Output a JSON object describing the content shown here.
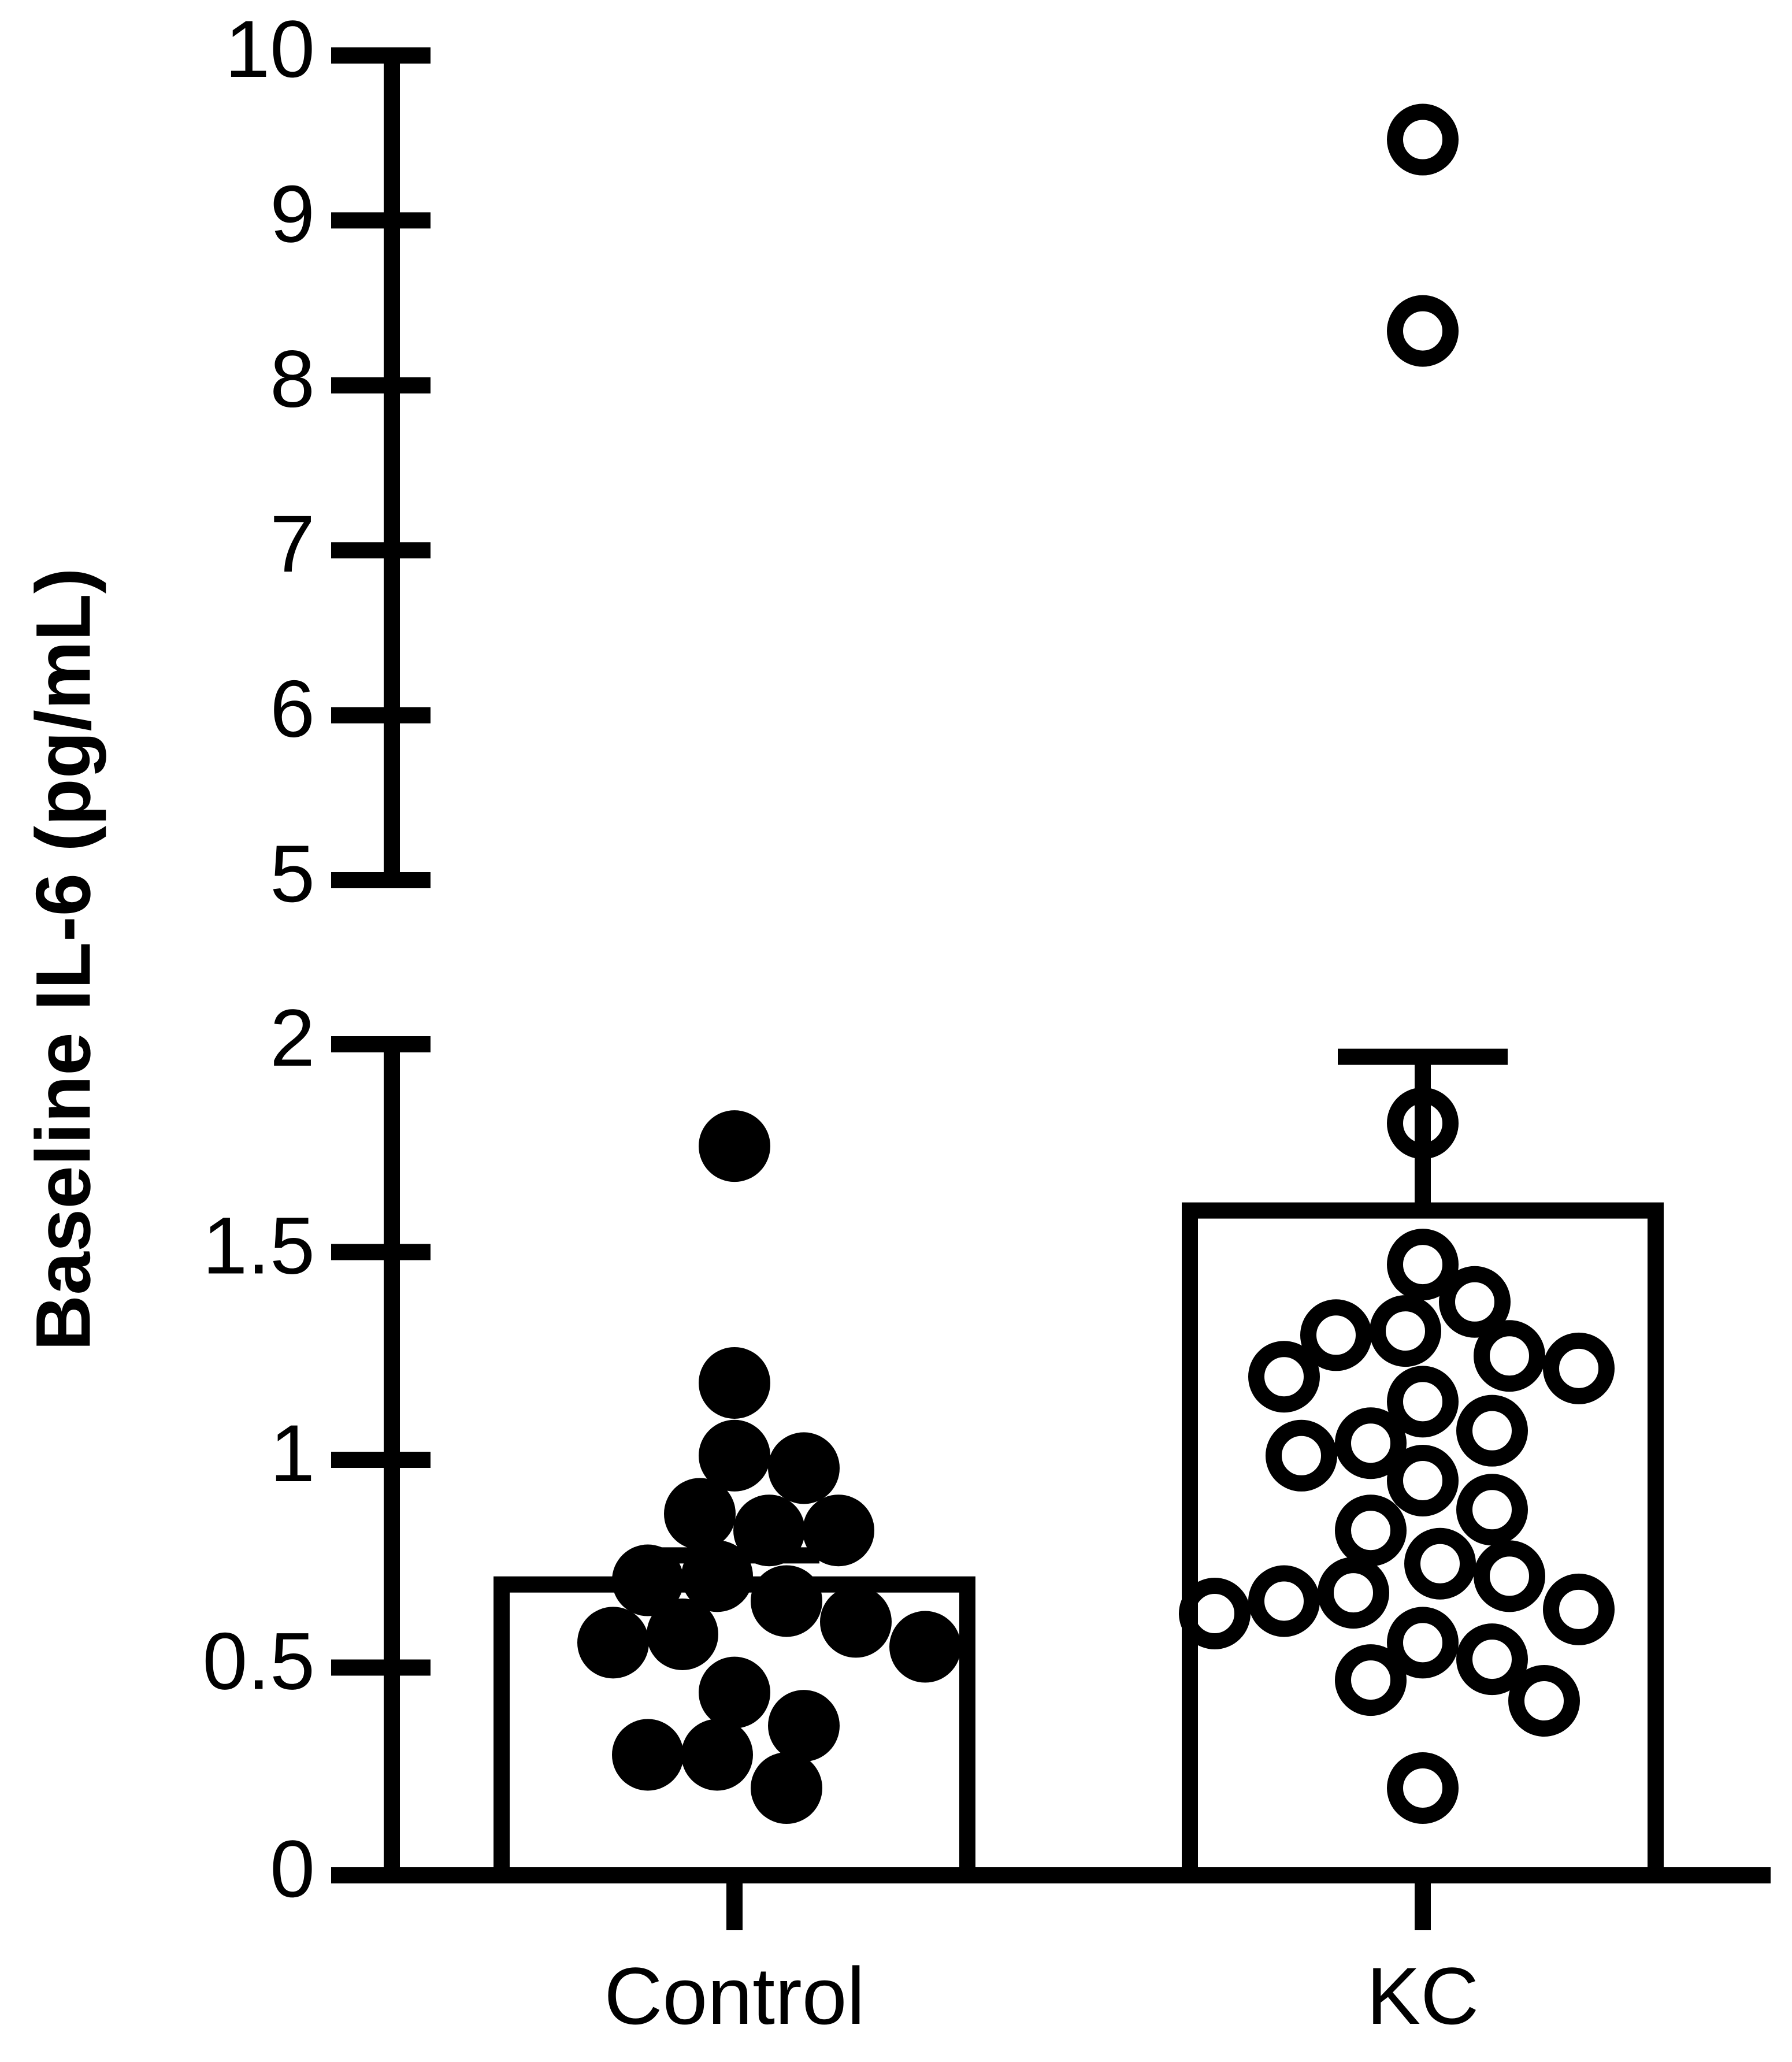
{
  "chart_data": {
    "type": "bar-scatter",
    "y_label": "Baseline IL-6 (pg/mL)",
    "categories": [
      "Control",
      "KC"
    ],
    "values": [
      0.7,
      1.6
    ],
    "errors": [
      0.07,
      0.37
    ],
    "markers": [
      "filled",
      "open"
    ],
    "color": "#000000",
    "points": [
      [
        1.755,
        1.185,
        1.01,
        0.98,
        0.87,
        0.83,
        0.83,
        0.72,
        0.71,
        0.66,
        0.61,
        0.58,
        0.56,
        0.55,
        0.44,
        0.36,
        0.29,
        0.29,
        0.21
      ],
      [
        9.49,
        8.33,
        1.81,
        1.47,
        1.38,
        1.31,
        1.3,
        1.25,
        1.22,
        1.2,
        1.14,
        1.07,
        1.04,
        1.01,
        0.95,
        0.88,
        0.83,
        0.75,
        0.72,
        0.68,
        0.66,
        0.64,
        0.63,
        0.56,
        0.52,
        0.47,
        0.42,
        0.21
      ]
    ],
    "ylim": [
      0,
      2
    ],
    "yticks": [
      0,
      0.5,
      1,
      1.5,
      2
    ],
    "upper_ylim": [
      5,
      10
    ],
    "upper_yticks": [
      5,
      6,
      7,
      8,
      9,
      10
    ]
  }
}
